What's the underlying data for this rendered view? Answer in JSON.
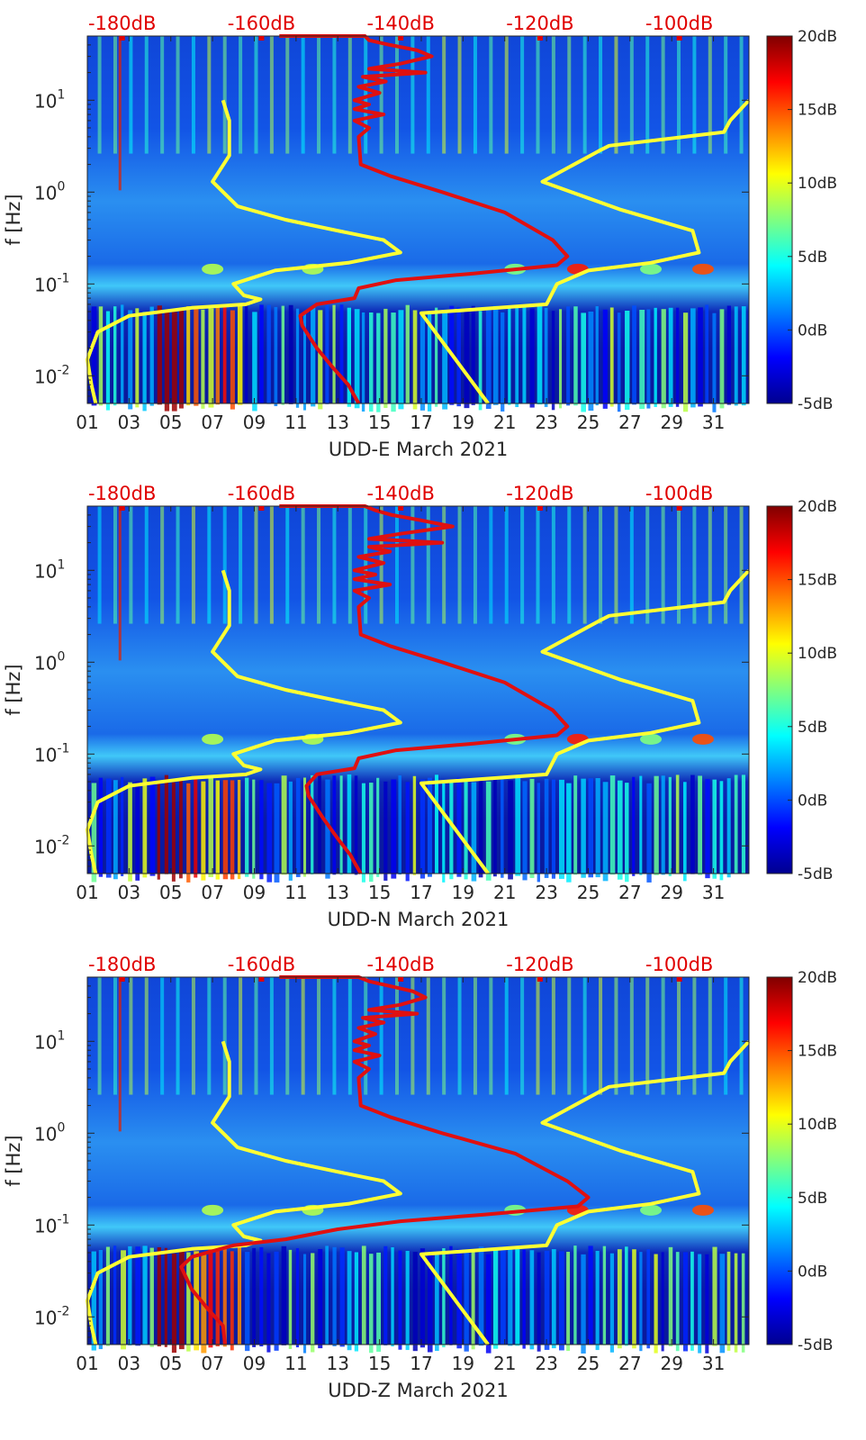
{
  "chart_data": [
    {
      "type": "heatmap",
      "title": "",
      "xlabel": "UDD-E March 2021",
      "ylabel": "f [Hz]",
      "x_ticks": [
        "01",
        "03",
        "05",
        "07",
        "09",
        "11",
        "13",
        "15",
        "17",
        "19",
        "21",
        "23",
        "25",
        "27",
        "29",
        "31"
      ],
      "y_ticks": [
        {
          "value": 0.01,
          "base": "10",
          "exp": "-2"
        },
        {
          "value": 0.1,
          "base": "10",
          "exp": "-1"
        },
        {
          "value": 1,
          "base": "10",
          "exp": "0"
        },
        {
          "value": 10,
          "base": "10",
          "exp": "1"
        }
      ],
      "xlim": [
        1,
        32.7
      ],
      "ylim": [
        0.005,
        50
      ],
      "colorbar": {
        "ticks": [
          "20dB",
          "15dB",
          "10dB",
          "5dB",
          "0dB",
          "-5dB"
        ],
        "range": [
          -5,
          20
        ]
      },
      "top_axis_ticks": [
        "-180dB",
        "-160dB",
        "-140dB",
        "-120dB",
        "-100dB"
      ],
      "top_axis_range": [
        -185,
        -90
      ],
      "series": [
        {
          "name": "yellow-left",
          "color": "#ffff33",
          "x": [
            7.5,
            7.8,
            7.8,
            7.0,
            8.2,
            10.5,
            13.0,
            15.2,
            16.0,
            13.5,
            10.0,
            8.0,
            8.5,
            9.3,
            8.6,
            6.0,
            3.0,
            1.5,
            1.0,
            1.2,
            1.4
          ],
          "y": [
            10,
            6,
            2.5,
            1.3,
            0.7,
            0.5,
            0.38,
            0.3,
            0.22,
            0.17,
            0.14,
            0.1,
            0.075,
            0.068,
            0.06,
            0.055,
            0.045,
            0.03,
            0.015,
            0.008,
            0.005
          ]
        },
        {
          "name": "yellow-right",
          "color": "#ffff33",
          "x": [
            32.7,
            31.8,
            31.5,
            26.0,
            25.5,
            22.8,
            26.5,
            30.0,
            30.3,
            28.0,
            25.0,
            23.5,
            23.0,
            17.0,
            20.2
          ],
          "y": [
            10,
            6,
            4.5,
            3.2,
            2.8,
            1.3,
            0.65,
            0.38,
            0.22,
            0.17,
            0.14,
            0.1,
            0.06,
            0.048,
            0.005
          ]
        },
        {
          "name": "red",
          "color": "#e01010",
          "x": [
            10.2,
            14.3,
            14.5,
            15.5,
            16.8,
            17.5,
            16.0,
            14.5,
            17.2,
            14.2,
            15.3,
            14.0,
            15.0,
            13.8,
            14.5,
            13.8,
            15.2,
            13.8,
            14.5,
            14.0,
            14.1,
            15.5,
            18.0,
            21.0,
            23.3,
            24.0,
            23.5,
            19.5,
            15.8,
            14.0,
            13.8,
            12.0,
            11.2,
            11.3,
            12.0,
            12.8,
            13.5,
            14.0
          ],
          "y": [
            50,
            50,
            45,
            40,
            35,
            30,
            25,
            22,
            20,
            18,
            16,
            14,
            12,
            10,
            9,
            8,
            7,
            6,
            5,
            4,
            2,
            1.5,
            1.0,
            0.6,
            0.3,
            0.2,
            0.16,
            0.13,
            0.11,
            0.09,
            0.07,
            0.06,
            0.045,
            0.035,
            0.02,
            0.012,
            0.008,
            0.005
          ]
        }
      ]
    },
    {
      "type": "heatmap",
      "title": "",
      "xlabel": "UDD-N March 2021",
      "ylabel": "f [Hz]",
      "x_ticks": [
        "01",
        "03",
        "05",
        "07",
        "09",
        "11",
        "13",
        "15",
        "17",
        "19",
        "21",
        "23",
        "25",
        "27",
        "29",
        "31"
      ],
      "y_ticks": [
        {
          "value": 0.01,
          "base": "10",
          "exp": "-2"
        },
        {
          "value": 0.1,
          "base": "10",
          "exp": "-1"
        },
        {
          "value": 1,
          "base": "10",
          "exp": "0"
        },
        {
          "value": 10,
          "base": "10",
          "exp": "1"
        }
      ],
      "xlim": [
        1,
        32.7
      ],
      "ylim": [
        0.005,
        50
      ],
      "colorbar": {
        "ticks": [
          "20dB",
          "15dB",
          "10dB",
          "5dB",
          "0dB",
          "-5dB"
        ],
        "range": [
          -5,
          20
        ]
      },
      "top_axis_ticks": [
        "-180dB",
        "-160dB",
        "-140dB",
        "-120dB",
        "-100dB"
      ],
      "top_axis_range": [
        -185,
        -90
      ],
      "series": [
        {
          "name": "yellow-left",
          "color": "#ffff33",
          "x": [
            7.5,
            7.8,
            7.8,
            7.0,
            8.2,
            10.5,
            13.0,
            15.2,
            16.0,
            13.5,
            10.0,
            8.0,
            8.5,
            9.3,
            8.6,
            6.0,
            3.0,
            1.5,
            1.0,
            1.2,
            1.4
          ],
          "y": [
            10,
            6,
            2.5,
            1.3,
            0.7,
            0.5,
            0.38,
            0.3,
            0.22,
            0.17,
            0.14,
            0.1,
            0.075,
            0.068,
            0.06,
            0.055,
            0.045,
            0.03,
            0.015,
            0.008,
            0.005
          ]
        },
        {
          "name": "yellow-right",
          "color": "#ffff33",
          "x": [
            32.7,
            31.8,
            31.5,
            26.0,
            25.5,
            22.8,
            26.5,
            30.0,
            30.3,
            28.0,
            25.0,
            23.5,
            23.0,
            17.0,
            20.2
          ],
          "y": [
            10,
            6,
            4.5,
            3.2,
            2.8,
            1.3,
            0.65,
            0.38,
            0.22,
            0.17,
            0.14,
            0.1,
            0.06,
            0.048,
            0.005
          ]
        },
        {
          "name": "red",
          "color": "#e01010",
          "x": [
            10.2,
            14.3,
            14.8,
            15.6,
            17.0,
            18.5,
            16.0,
            14.5,
            18.0,
            14.5,
            15.5,
            14.0,
            15.2,
            13.8,
            14.8,
            13.8,
            15.5,
            13.8,
            14.5,
            14.0,
            14.1,
            15.5,
            18.0,
            21.0,
            23.3,
            24.0,
            23.5,
            19.5,
            15.8,
            14.0,
            13.8,
            12.0,
            11.5,
            11.6,
            12.3,
            13.0,
            13.6,
            14.1
          ],
          "y": [
            50,
            50,
            45,
            40,
            35,
            30,
            25,
            22,
            20,
            18,
            16,
            14,
            12,
            10,
            9,
            8,
            7,
            6,
            5,
            4,
            2,
            1.5,
            1.0,
            0.6,
            0.3,
            0.2,
            0.16,
            0.13,
            0.11,
            0.09,
            0.07,
            0.06,
            0.045,
            0.035,
            0.02,
            0.012,
            0.008,
            0.005
          ]
        }
      ]
    },
    {
      "type": "heatmap",
      "title": "",
      "xlabel": "UDD-Z March 2021",
      "ylabel": "f [Hz]",
      "x_ticks": [
        "01",
        "03",
        "05",
        "07",
        "09",
        "11",
        "13",
        "15",
        "17",
        "19",
        "21",
        "23",
        "25",
        "27",
        "29",
        "31"
      ],
      "y_ticks": [
        {
          "value": 0.01,
          "base": "10",
          "exp": "-2"
        },
        {
          "value": 0.1,
          "base": "10",
          "exp": "-1"
        },
        {
          "value": 1,
          "base": "10",
          "exp": "0"
        },
        {
          "value": 10,
          "base": "10",
          "exp": "1"
        }
      ],
      "xlim": [
        1,
        32.7
      ],
      "ylim": [
        0.005,
        50
      ],
      "colorbar": {
        "ticks": [
          "20dB",
          "15dB",
          "10dB",
          "5dB",
          "0dB",
          "-5dB"
        ],
        "range": [
          -5,
          20
        ]
      },
      "top_axis_ticks": [
        "-180dB",
        "-160dB",
        "-140dB",
        "-120dB",
        "-100dB"
      ],
      "top_axis_range": [
        -185,
        -90
      ],
      "series": [
        {
          "name": "yellow-left",
          "color": "#ffff33",
          "x": [
            7.5,
            7.8,
            7.8,
            7.0,
            8.2,
            10.5,
            13.0,
            15.2,
            16.0,
            13.5,
            10.0,
            8.0,
            8.5,
            9.3,
            8.6,
            6.0,
            3.0,
            1.5,
            1.0,
            1.2,
            1.4
          ],
          "y": [
            10,
            6,
            2.5,
            1.3,
            0.7,
            0.5,
            0.38,
            0.3,
            0.22,
            0.17,
            0.14,
            0.1,
            0.075,
            0.068,
            0.06,
            0.055,
            0.045,
            0.03,
            0.015,
            0.008,
            0.005
          ]
        },
        {
          "name": "yellow-right",
          "color": "#ffff33",
          "x": [
            32.7,
            31.8,
            31.5,
            26.0,
            25.5,
            22.8,
            26.5,
            30.0,
            30.3,
            28.0,
            25.0,
            23.5,
            23.0,
            17.0,
            20.2
          ],
          "y": [
            10,
            6,
            4.5,
            3.2,
            2.8,
            1.3,
            0.65,
            0.38,
            0.22,
            0.17,
            0.14,
            0.1,
            0.06,
            0.048,
            0.005
          ]
        },
        {
          "name": "red",
          "color": "#e01010",
          "x": [
            10.2,
            14.0,
            14.5,
            15.5,
            16.6,
            17.2,
            16.0,
            14.5,
            16.8,
            14.2,
            15.2,
            14.0,
            14.8,
            13.8,
            14.5,
            13.8,
            15.0,
            13.8,
            14.5,
            14.0,
            14.1,
            15.5,
            18.0,
            21.5,
            24.0,
            25.0,
            24.5,
            20.0,
            16.0,
            13.0,
            10.5,
            8.0,
            6.0,
            5.5,
            6.0,
            6.8,
            7.5,
            7.6
          ],
          "y": [
            50,
            50,
            45,
            40,
            35,
            30,
            25,
            22,
            20,
            18,
            16,
            14,
            12,
            10,
            9,
            8,
            7,
            6,
            5,
            4,
            2,
            1.5,
            1.0,
            0.6,
            0.3,
            0.2,
            0.16,
            0.13,
            0.11,
            0.09,
            0.07,
            0.06,
            0.045,
            0.035,
            0.02,
            0.012,
            0.008,
            0.005
          ]
        }
      ]
    }
  ]
}
